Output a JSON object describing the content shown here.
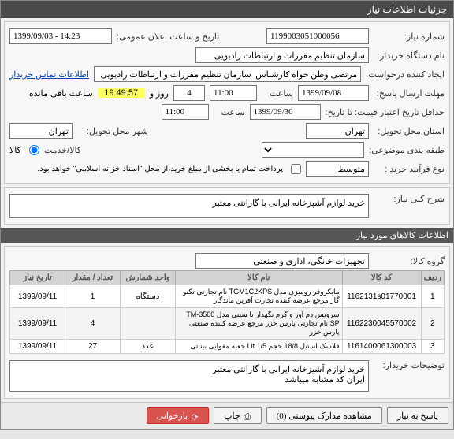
{
  "titlebar": "جزئیات اطلاعات نیاز",
  "header": {
    "need_no_lbl": "شماره نیاز:",
    "need_no": "1199003051000056",
    "pub_time_lbl": "تاریخ و ساعت اعلان عمومی:",
    "pub_time": "1399/09/03 - 14:23",
    "buyer_org_lbl": "نام دستگاه خریدار:",
    "buyer_org": "سازمان تنظیم مقررات و ارتباطات رادیویی",
    "creator_lbl": "ایجاد کننده درخواست:",
    "creator": "مرتضی وطن خواه کارشناس  سازمان تنظیم مقررات و ارتباطات رادیویی",
    "contact_link": "اطلاعات تماس خریدار",
    "deadline_lbl": "مهلت ارسال پاسخ:",
    "deadline_date": "1399/09/08",
    "time_lbl": "ساعت",
    "deadline_time": "11:00",
    "days_lbl_count": "4",
    "days_lbl": "روز و",
    "remaining_time": "19:49:57",
    "remaining_lbl": "ساعت باقی مانده",
    "validity_lbl": "حداقل تاریخ اعتبار قیمت: تا تاریخ:",
    "validity_date": "1399/09/30",
    "validity_time": "11:00",
    "delivery_province_lbl": "استان محل تحویل:",
    "delivery_province": "تهران",
    "delivery_city_lbl": "شهر محل تحویل:",
    "delivery_city": "تهران",
    "classification_lbl": "طبقه بندی موضوعی:",
    "good_service_lbl": "کالا/خدمت",
    "good_radio_lbl": "کالا",
    "purchase_type_lbl": "نوع فرآیند خرید :",
    "purchase_type": "متوسط",
    "partial_lbl": "پرداخت تمام یا بخشی از مبلغ خرید،از محل \"اسناد خزانه اسلامی\" خواهد بود."
  },
  "summary": {
    "title_lbl": "شرح کلی نیاز:",
    "title_text": "خرید لوازم آشپزخانه ایرانی با گارانتی معتبر"
  },
  "items_section_title": "اطلاعات کالاهای مورد نیاز",
  "group": {
    "lbl": "گروه کالا:",
    "value": "تجهیزات خانگی، اداری و صنعتی"
  },
  "table": {
    "cols": [
      "ردیف",
      "کد کالا",
      "نام کالا",
      "واحد شمارش",
      "تعداد / مقدار",
      "تاریخ نیاز"
    ],
    "rows": [
      {
        "idx": "1",
        "code": "1162131s01770001",
        "name": "مایکروفر رومیزی مدل TGM1C2KPS نام تجارتی تکنو گاز مرجع عرضه کننده تجارت آفرین ماندگار",
        "unit": "دستگاه",
        "qty": "1",
        "date": "1399/09/11"
      },
      {
        "idx": "2",
        "code": "1162230045570002",
        "name": "سرویس دم آور و گرم نگهدار با سینی مدل TM-3500 SP نام تجارتی پارس خزر مرجع عرضه کننده صنعتی پارس خزر",
        "unit": "",
        "qty": "4",
        "date": "1399/09/11"
      },
      {
        "idx": "3",
        "code": "1161400061300003",
        "name": "فلاسک استیل 18/8 حجم Lit 1/5 جعبه مقوایی بیناتی",
        "unit": "عدد",
        "qty": "27",
        "date": "1399/09/11"
      }
    ]
  },
  "buyer_notes": {
    "lbl": "توضیحات خریدار:",
    "text": "خرید لوازم آشپزخانه ایرانی با گارانتی معتبر\nایران کد مشابه میباشد"
  },
  "toolbar": {
    "reply": "پاسخ به نیاز",
    "attachments": "مشاهده مدارک پیوستی  (0)",
    "print": "چاپ",
    "refresh": "بازخوانی"
  }
}
